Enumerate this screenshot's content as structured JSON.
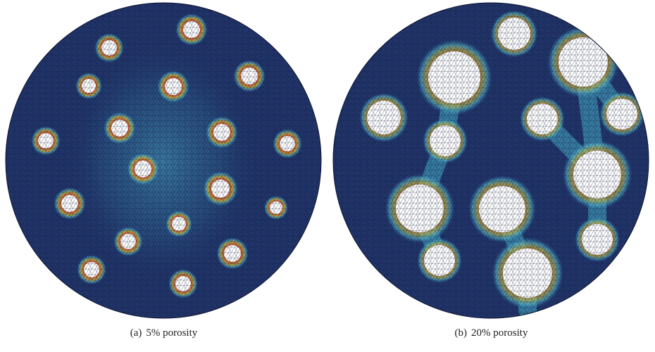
{
  "figure": {
    "panels": [
      {
        "tag": "(a)",
        "caption": "5% porosity"
      },
      {
        "tag": "(b)",
        "caption": "20% porosity"
      }
    ]
  },
  "colors": {
    "background": "#21356b",
    "mesh_line": "#0c1430",
    "hole": "#ffffff",
    "stress_low": "#2e6f9c",
    "stress_mid": "#55b9cf",
    "stress_high_1": "#d8c23a",
    "stress_high_2": "#d2552a",
    "stress_peak": "#b01e1e"
  }
}
